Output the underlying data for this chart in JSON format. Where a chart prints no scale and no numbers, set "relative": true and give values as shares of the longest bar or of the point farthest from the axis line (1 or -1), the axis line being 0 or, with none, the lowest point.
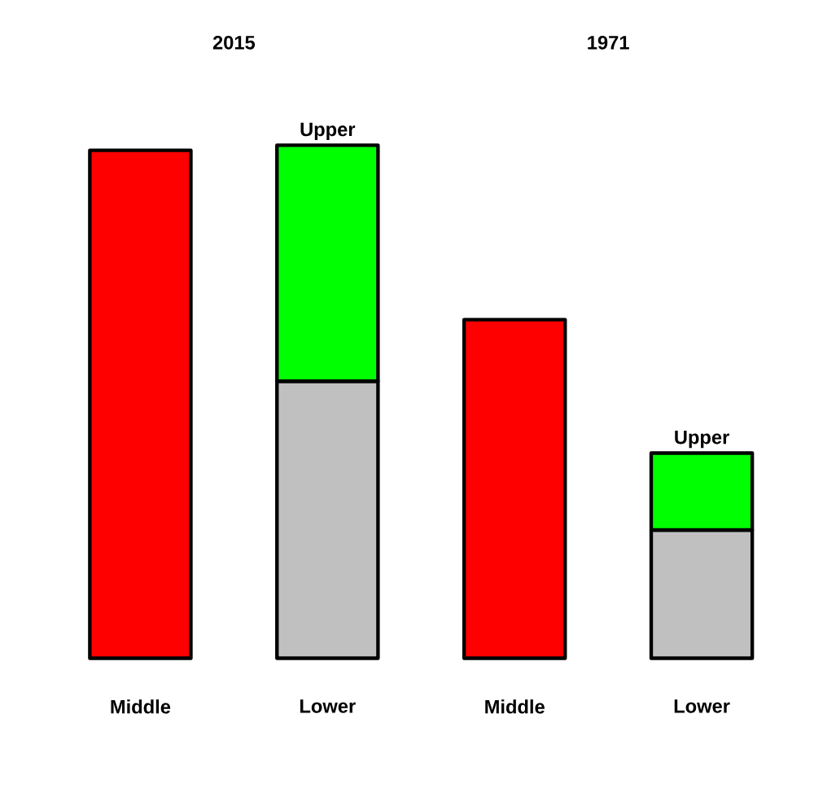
{
  "chart_data": {
    "type": "bar",
    "relative": true,
    "stacked": true,
    "categories": [
      "Middle",
      "Lower",
      "Middle",
      "Lower"
    ],
    "series": [
      {
        "color": "#ff0000",
        "values": [
          0.99,
          null,
          0.66,
          null
        ]
      },
      {
        "color": "#c0c0c0",
        "values": [
          null,
          0.54,
          null,
          0.25
        ]
      },
      {
        "name": "Upper",
        "color": "#00ff00",
        "values": [
          null,
          0.46,
          null,
          0.15
        ]
      }
    ],
    "annotations": [
      "2015",
      "1971"
    ]
  }
}
